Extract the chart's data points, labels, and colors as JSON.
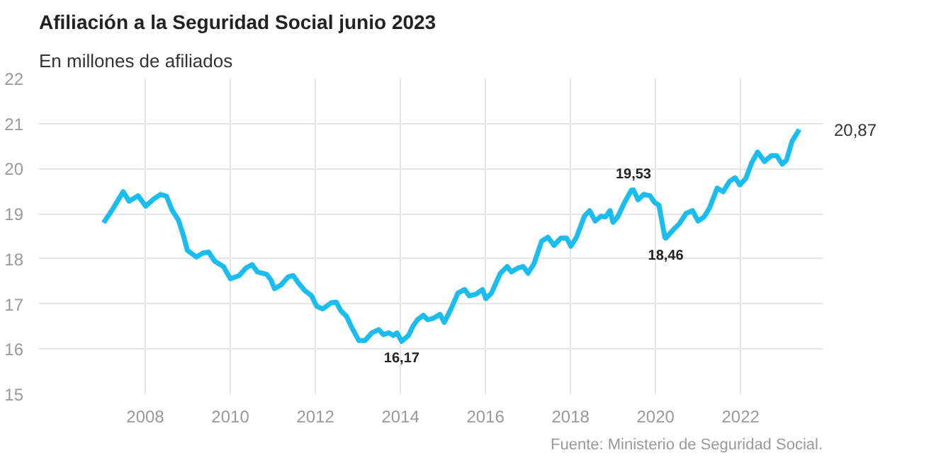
{
  "chart_data": {
    "type": "line",
    "title": "Afiliación a la Seguridad Social junio 2023",
    "subtitle": "En millones de afiliados",
    "x": [
      2007.02,
      2007.25,
      2007.48,
      2007.62,
      2007.83,
      2008.01,
      2008.2,
      2008.36,
      2008.5,
      2008.62,
      2008.78,
      2008.89,
      2008.99,
      2009.2,
      2009.36,
      2009.49,
      2009.63,
      2009.84,
      2010.0,
      2010.21,
      2010.37,
      2010.51,
      2010.64,
      2010.85,
      2010.95,
      2011.04,
      2011.19,
      2011.36,
      2011.48,
      2011.59,
      2011.75,
      2011.91,
      2012.03,
      2012.17,
      2012.38,
      2012.49,
      2012.6,
      2012.73,
      2012.86,
      2013.02,
      2013.17,
      2013.33,
      2013.49,
      2013.6,
      2013.73,
      2013.83,
      2013.92,
      2014.03,
      2014.19,
      2014.29,
      2014.4,
      2014.54,
      2014.64,
      2014.77,
      2014.93,
      2015.03,
      2015.19,
      2015.35,
      2015.51,
      2015.62,
      2015.78,
      2015.93,
      2016.01,
      2016.14,
      2016.35,
      2016.51,
      2016.61,
      2016.77,
      2016.89,
      2017.0,
      2017.14,
      2017.32,
      2017.47,
      2017.61,
      2017.77,
      2017.91,
      2018.01,
      2018.14,
      2018.33,
      2018.45,
      2018.58,
      2018.72,
      2018.82,
      2018.93,
      2019.0,
      2019.11,
      2019.27,
      2019.43,
      2019.48,
      2019.59,
      2019.72,
      2019.87,
      2019.98,
      2020.08,
      2020.22,
      2020.24,
      2020.43,
      2020.56,
      2020.72,
      2020.87,
      2021.0,
      2021.14,
      2021.27,
      2021.45,
      2021.59,
      2021.74,
      2021.87,
      2021.98,
      2022.12,
      2022.26,
      2022.4,
      2022.56,
      2022.72,
      2022.85,
      2022.98,
      2023.08,
      2023.21,
      2023.38
    ],
    "series": [
      {
        "color": "#19bdf0",
        "values": [
          18.8,
          19.13,
          19.49,
          19.28,
          19.4,
          19.17,
          19.33,
          19.43,
          19.39,
          19.1,
          18.86,
          18.54,
          18.19,
          18.04,
          18.13,
          18.15,
          17.95,
          17.83,
          17.56,
          17.63,
          17.8,
          17.87,
          17.71,
          17.66,
          17.54,
          17.34,
          17.42,
          17.6,
          17.63,
          17.48,
          17.3,
          17.18,
          16.95,
          16.89,
          17.03,
          17.04,
          16.85,
          16.73,
          16.47,
          16.19,
          16.19,
          16.36,
          16.43,
          16.32,
          16.36,
          16.3,
          16.36,
          16.17,
          16.3,
          16.5,
          16.65,
          16.75,
          16.65,
          16.68,
          16.77,
          16.59,
          16.89,
          17.24,
          17.32,
          17.18,
          17.22,
          17.32,
          17.12,
          17.24,
          17.68,
          17.83,
          17.71,
          17.8,
          17.83,
          17.68,
          17.89,
          18.39,
          18.48,
          18.3,
          18.46,
          18.46,
          18.28,
          18.48,
          18.95,
          19.07,
          18.84,
          18.95,
          18.93,
          19.07,
          18.81,
          18.93,
          19.25,
          19.52,
          19.53,
          19.31,
          19.43,
          19.4,
          19.25,
          19.19,
          18.48,
          18.46,
          18.66,
          18.78,
          19.01,
          19.07,
          18.84,
          18.93,
          19.13,
          19.57,
          19.49,
          19.72,
          19.8,
          19.64,
          19.78,
          20.13,
          20.37,
          20.16,
          20.29,
          20.29,
          20.1,
          20.19,
          20.61,
          20.87
        ]
      }
    ],
    "xlim": [
      2005.5,
      2023.93
    ],
    "xticks": [
      2008,
      2010,
      2012,
      2014,
      2016,
      2018,
      2020,
      2022
    ],
    "ylim": [
      15,
      22
    ],
    "yticks": [
      15,
      16,
      17,
      18,
      19,
      20,
      21,
      22
    ],
    "grid": true,
    "marker": "none",
    "line_style": "solid",
    "annotations": [
      {
        "text": "16,17",
        "x": 2014.03,
        "y": 16.17
      },
      {
        "text": "19,53",
        "x": 2019.48,
        "y": 19.53
      },
      {
        "text": "18,46",
        "x": 2020.24,
        "y": 18.46
      },
      {
        "text": "20,87",
        "x": 2023.38,
        "y": 20.87
      },
      "Fuente: Ministerio de Seguridad Social."
    ]
  }
}
